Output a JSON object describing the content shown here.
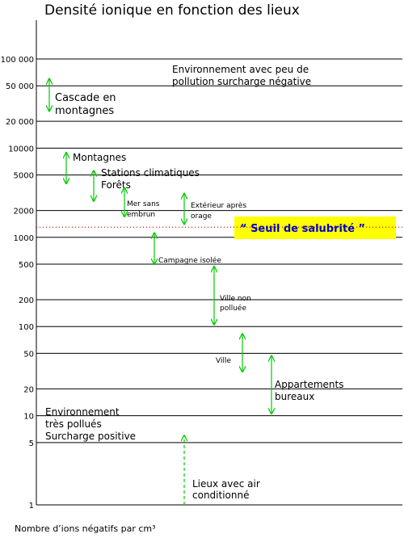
{
  "chart_data": {
    "type": "range",
    "title": "Densité ionique en fonction des lieux",
    "x_label": "Nombre d’ions négatifs par  cm³",
    "log_scale": true,
    "ylim": [
      1,
      100000
    ],
    "yticks": [
      {
        "value": 100000,
        "label": "100 000"
      },
      {
        "value": 50000,
        "label": "50 000"
      },
      {
        "value": 20000,
        "label": "20 000"
      },
      10000,
      5000,
      2000,
      1000,
      500,
      200,
      100,
      50,
      20,
      10,
      5,
      1
    ],
    "grid": true,
    "color": "#00cc00",
    "threshold": {
      "value": 1300,
      "label": "“ Seuil de salubrité ”",
      "color": "#ff0000"
    },
    "ranges": [
      {
        "label": [
          "Cascade en",
          "montagnes"
        ],
        "low": 26000,
        "high": 60000
      },
      {
        "label": [
          "Montagnes"
        ],
        "low": 4000,
        "high": 8900
      },
      {
        "label": [
          "Stations climatiques",
          "Forêts"
        ],
        "low": 2550,
        "high": 5600
      },
      {
        "label": [
          "Mer sans",
          "embrun"
        ],
        "low": 1700,
        "high": 3600
      },
      {
        "label": [
          "Extérieur après",
          "orage"
        ],
        "low": 1400,
        "high": 3100
      },
      {
        "label": [
          "Campagne isolée"
        ],
        "low": 500,
        "high": 1120
      },
      {
        "label": [
          "Ville non",
          "polluée"
        ],
        "low": 105,
        "high": 470
      },
      {
        "label": [
          "Ville"
        ],
        "low": 31,
        "high": 83
      },
      {
        "label": [
          "Appartements",
          "bureaux"
        ],
        "low": 10.5,
        "high": 47
      },
      {
        "label": [
          "Lieux avec air",
          "conditionné"
        ],
        "low": 1,
        "high": 6,
        "dashed": true
      }
    ],
    "regions": [
      [
        "Environnement  avec peu de",
        "pollution surcharge négative"
      ],
      [
        "Environnement",
        "très pollués",
        "Surcharge positive"
      ]
    ]
  }
}
